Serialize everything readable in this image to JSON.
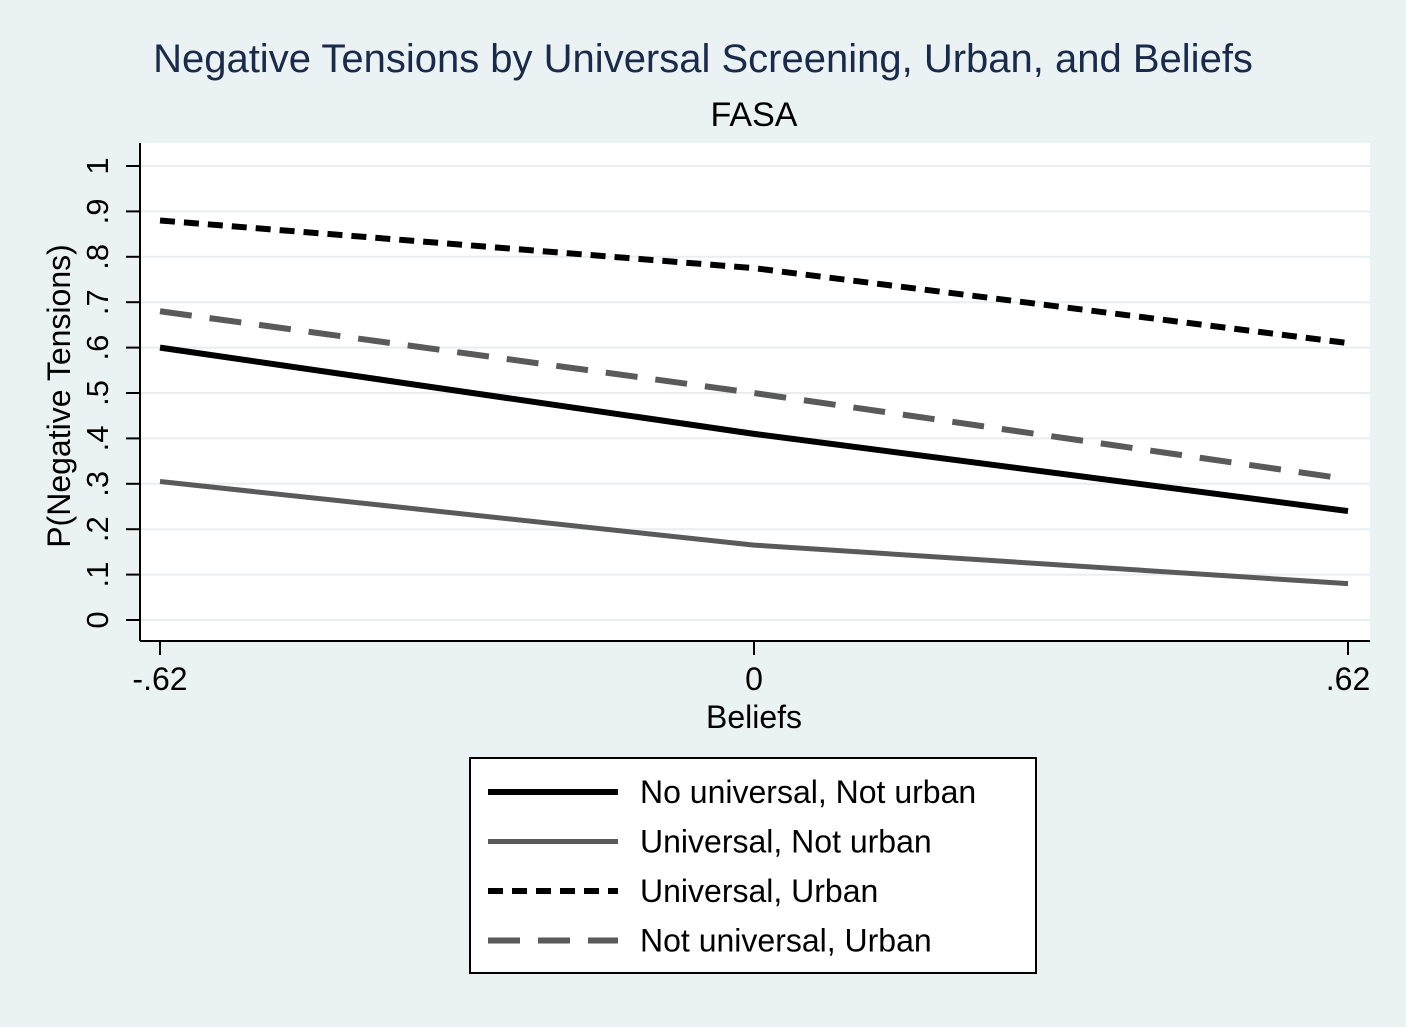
{
  "chart_data": {
    "type": "line",
    "title": "Negative Tensions by Universal Screening, Urban, and Beliefs",
    "subtitle": "FASA",
    "xlabel": "Beliefs",
    "ylabel": "P(Negative Tensions)",
    "x": [
      -0.62,
      0,
      0.62
    ],
    "x_tick_values": [
      -0.62,
      0,
      0.62
    ],
    "x_tick_labels": [
      "-.62",
      "0",
      ".62"
    ],
    "xlim": [
      -0.62,
      0.62
    ],
    "y_tick_values": [
      0,
      0.1,
      0.2,
      0.3,
      0.4,
      0.5,
      0.6,
      0.7,
      0.8,
      0.9,
      1
    ],
    "y_tick_labels": [
      "0",
      ".1",
      ".2",
      ".3",
      ".4",
      ".5",
      ".6",
      ".7",
      ".8",
      ".9",
      "1"
    ],
    "ylim": [
      0,
      1
    ],
    "grid": true,
    "legend_position": "bottom",
    "series": [
      {
        "name": "No universal, Not urban",
        "values": [
          0.6,
          0.41,
          0.24
        ],
        "color": "#000000",
        "style": "solid-thick"
      },
      {
        "name": "Universal, Not urban",
        "values": [
          0.305,
          0.165,
          0.08
        ],
        "color": "#5a5a5a",
        "style": "solid-thin"
      },
      {
        "name": "Universal, Urban",
        "values": [
          0.88,
          0.775,
          0.61
        ],
        "color": "#000000",
        "style": "short-dash"
      },
      {
        "name": "Not universal, Urban",
        "values": [
          0.68,
          0.5,
          0.31
        ],
        "color": "#5a5a5a",
        "style": "long-dash"
      }
    ],
    "colors": {
      "background": "#eaf2f3",
      "plot_area": "#ffffff",
      "title": "#1a2a4a",
      "text": "#000000",
      "grid": "#e8eef0",
      "axis": "#000000"
    }
  }
}
